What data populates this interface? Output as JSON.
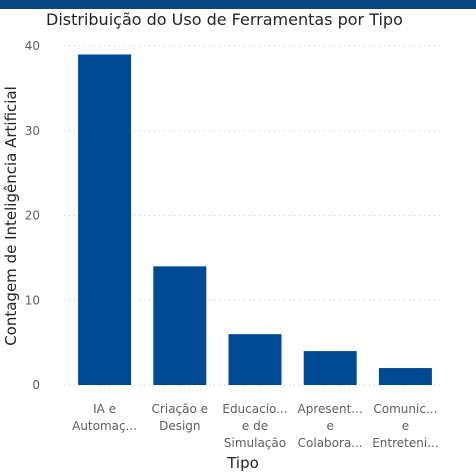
{
  "colors": {
    "bar": "#004A93",
    "header": "#094782",
    "grid": "#C8C6C4"
  },
  "chart_data": {
    "type": "bar",
    "title": "Distribuição do Uso de Ferramentas por Tipo",
    "xlabel": "Tipo",
    "ylabel": "Contagem de Inteligência Artificial",
    "ylim": [
      0,
      40
    ],
    "yticks": [
      0,
      10,
      20,
      30,
      40
    ],
    "grid": true,
    "categories": [
      [
        "IA e",
        "Automaç..."
      ],
      [
        "Criação e",
        "Design"
      ],
      [
        "Educacio...",
        "e de",
        "Simulação"
      ],
      [
        "Apresent...",
        "e",
        "Colabora..."
      ],
      [
        "Comunic...",
        "e",
        "Entreteni..."
      ]
    ],
    "values": [
      39,
      14,
      6,
      4,
      2
    ]
  }
}
